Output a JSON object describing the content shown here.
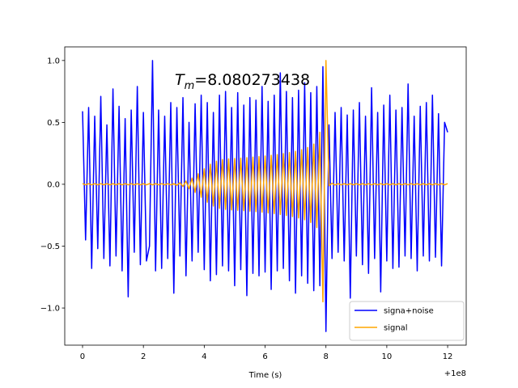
{
  "chart_data": {
    "type": "line",
    "annotation": {
      "symbol": "T",
      "subscript": "m",
      "text": "=8.080273438"
    },
    "x_label": "Time (s)",
    "x_offset_label": "+1e8",
    "xlim": [
      -0.585,
      12.61
    ],
    "ylim": [
      -1.3,
      1.11
    ],
    "xticks": [
      0,
      2,
      4,
      6,
      8,
      10,
      12
    ],
    "yticks": [
      {
        "value": -1.0,
        "label": "−1.0"
      },
      {
        "value": -0.5,
        "label": "−0.5"
      },
      {
        "value": 0.0,
        "label": "0.0"
      },
      {
        "value": 0.5,
        "label": "0.5"
      },
      {
        "value": 1.0,
        "label": "1.0"
      }
    ],
    "legend": "lower right",
    "x": [
      0,
      0.1,
      0.2,
      0.3,
      0.4,
      0.5,
      0.6,
      0.7,
      0.8,
      0.9,
      1,
      1.1,
      1.2,
      1.3,
      1.4,
      1.5,
      1.6,
      1.7,
      1.8,
      1.9,
      2,
      2.1,
      2.2,
      2.3,
      2.4,
      2.5,
      2.6,
      2.7,
      2.8,
      2.9,
      3,
      3.1,
      3.2,
      3.3,
      3.4,
      3.5,
      3.6,
      3.7,
      3.8,
      3.9,
      4,
      4.1,
      4.2,
      4.3,
      4.4,
      4.5,
      4.6,
      4.7,
      4.8,
      4.9,
      5,
      5.1,
      5.2,
      5.3,
      5.4,
      5.5,
      5.6,
      5.7,
      5.8,
      5.9,
      6,
      6.1,
      6.2,
      6.3,
      6.4,
      6.5,
      6.6,
      6.7,
      6.8,
      6.9,
      7,
      7.1,
      7.2,
      7.3,
      7.4,
      7.5,
      7.6,
      7.7,
      7.8,
      7.9,
      8,
      8.1,
      8.2,
      8.3,
      8.4,
      8.5,
      8.6,
      8.7,
      8.8,
      8.9,
      9,
      9.1,
      9.2,
      9.3,
      9.4,
      9.5,
      9.6,
      9.7,
      9.8,
      9.9,
      10,
      10.1,
      10.2,
      10.3,
      10.4,
      10.5,
      10.6,
      10.7,
      10.8,
      10.9,
      11,
      11.1,
      11.2,
      11.3,
      11.4,
      11.5,
      11.6,
      11.7,
      11.8,
      11.9,
      12
    ],
    "series": [
      {
        "name": "signa+noise",
        "color": "#0000ff",
        "values": [
          0.59,
          -0.45,
          0.62,
          -0.68,
          0.55,
          -0.52,
          0.71,
          -0.6,
          0.48,
          -0.66,
          0.77,
          -0.58,
          0.63,
          -0.7,
          0.53,
          -0.91,
          0.6,
          -0.55,
          0.79,
          -0.65,
          0.58,
          -0.62,
          -0.5,
          1.0,
          -0.7,
          0.6,
          -0.68,
          0.55,
          -0.6,
          0.66,
          -0.88,
          0.62,
          -0.58,
          0.7,
          -0.74,
          0.5,
          -0.62,
          0.65,
          -0.55,
          0.72,
          -0.69,
          0.66,
          -0.78,
          0.58,
          -0.73,
          0.72,
          -0.66,
          0.75,
          -0.7,
          0.62,
          -0.82,
          0.74,
          -0.69,
          0.64,
          -0.9,
          0.7,
          -0.72,
          0.68,
          -0.74,
          0.79,
          -0.71,
          0.67,
          -0.85,
          0.72,
          -0.7,
          0.9,
          -0.68,
          0.75,
          -0.78,
          0.7,
          -0.88,
          0.76,
          -0.74,
          0.82,
          -0.8,
          0.74,
          -0.86,
          0.79,
          -0.82,
          0.95,
          -1.19,
          0.48,
          -0.6,
          0.58,
          -0.55,
          0.62,
          -0.62,
          0.56,
          -0.92,
          0.6,
          -0.58,
          0.66,
          -0.65,
          0.55,
          -0.72,
          0.78,
          -0.6,
          0.58,
          -0.87,
          0.64,
          -0.62,
          0.72,
          -0.68,
          0.6,
          -0.67,
          0.62,
          -0.58,
          0.81,
          -0.6,
          0.55,
          -0.7,
          0.63,
          -0.58,
          0.66,
          -0.62,
          0.72,
          -0.59,
          0.57,
          -0.66,
          0.5,
          0.42
        ]
      },
      {
        "name": "signal",
        "color": "#ffa500",
        "values": [
          0.005,
          -0.005,
          0.005,
          -0.005,
          0.005,
          -0.005,
          0.005,
          -0.005,
          0.005,
          -0.005,
          0.005,
          -0.005,
          0.005,
          -0.005,
          0.005,
          -0.005,
          0.005,
          -0.005,
          0.005,
          -0.005,
          0.005,
          -0.005,
          0.005,
          -0.005,
          0.005,
          -0.005,
          0.005,
          -0.005,
          0.005,
          -0.005,
          0.005,
          -0.008,
          0.012,
          -0.018,
          0.026,
          -0.036,
          0.05,
          -0.066,
          0.085,
          -0.105,
          0.125,
          -0.145,
          0.162,
          -0.176,
          0.187,
          -0.195,
          0.2,
          -0.203,
          0.205,
          -0.207,
          0.208,
          -0.21,
          0.211,
          -0.213,
          0.215,
          -0.217,
          0.219,
          -0.221,
          0.223,
          -0.225,
          0.228,
          -0.231,
          0.234,
          -0.237,
          0.24,
          -0.244,
          0.248,
          -0.252,
          0.256,
          -0.261,
          0.266,
          -0.272,
          0.279,
          -0.287,
          0.297,
          -0.309,
          0.325,
          -0.35,
          0.42,
          -0.95,
          1.0,
          -0.012,
          0.008,
          -0.006,
          0.005,
          -0.005,
          0.005,
          -0.005,
          0.005,
          -0.005,
          0.005,
          -0.005,
          0.005,
          -0.005,
          0.005,
          -0.005,
          0.005,
          -0.005,
          0.005,
          -0.005,
          0.005,
          -0.005,
          0.005,
          -0.005,
          0.005,
          -0.005,
          0.005,
          -0.005,
          0.005,
          -0.005,
          0.005,
          -0.005,
          0.005,
          -0.005,
          0.005,
          -0.005,
          0.005,
          -0.005,
          0.005,
          -0.005,
          0.005
        ]
      }
    ]
  }
}
